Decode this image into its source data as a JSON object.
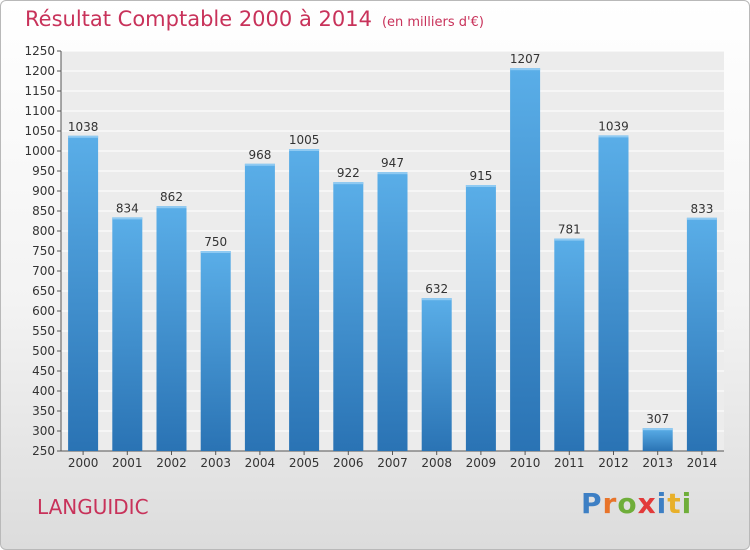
{
  "header": {
    "title": "Résultat Comptable 2000 à 2014",
    "unit": "(en milliers d'€)"
  },
  "footer": {
    "commune": "LANGUIDIC",
    "logo_text": "Proxiti"
  },
  "colors": {
    "title": "#c8325a",
    "bar_top": "#5aaee8",
    "bar_bottom": "#2a73b4",
    "logo_letters": [
      "#3d7fc4",
      "#e8742a",
      "#6fae3a",
      "#e23a3a",
      "#3d7fc4",
      "#e8b02a",
      "#6fae3a"
    ]
  },
  "chart_data": {
    "type": "bar",
    "categories": [
      "2000",
      "2001",
      "2002",
      "2003",
      "2004",
      "2005",
      "2006",
      "2007",
      "2008",
      "2009",
      "2010",
      "2011",
      "2012",
      "2013",
      "2014"
    ],
    "values": [
      1038,
      834,
      862,
      750,
      968,
      1005,
      922,
      947,
      632,
      915,
      1207,
      781,
      1039,
      307,
      833
    ],
    "ylim": [
      250,
      1250
    ],
    "yticks": [
      250,
      300,
      350,
      400,
      450,
      500,
      550,
      600,
      650,
      700,
      750,
      800,
      850,
      900,
      950,
      1000,
      1050,
      1100,
      1150,
      1200,
      1250
    ],
    "grid": "horizontal"
  }
}
